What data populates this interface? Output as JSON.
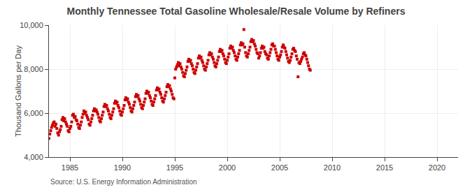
{
  "chart_data": {
    "type": "scatter",
    "title": "Monthly Tennessee Total Gasoline Wholesale/Resale Volume by Refiners",
    "ylabel": "Thousand Gallons per Day",
    "annotations": [
      "Source: U.S. Energy Information Administration"
    ],
    "color": "#cc0000",
    "marker": "square",
    "grid": true,
    "xlim": [
      1983,
      2022
    ],
    "ylim": [
      4000,
      10000
    ],
    "xticks": [
      1985,
      1990,
      1995,
      2000,
      2005,
      2010,
      2015,
      2020
    ],
    "yticks": [
      {
        "value": 4000,
        "label": "4,000"
      },
      {
        "value": 6000,
        "label": "6,000"
      },
      {
        "value": 8000,
        "label": "8,000"
      },
      {
        "value": 10000,
        "label": "10,000"
      }
    ],
    "x": [
      1983.0,
      1983.083,
      1983.167,
      1983.25,
      1983.333,
      1983.417,
      1983.5,
      1983.583,
      1983.667,
      1983.75,
      1983.833,
      1983.917,
      1984.0,
      1984.083,
      1984.167,
      1984.25,
      1984.333,
      1984.417,
      1984.5,
      1984.583,
      1984.667,
      1984.75,
      1984.833,
      1984.917,
      1985.0,
      1985.083,
      1985.167,
      1985.25,
      1985.333,
      1985.417,
      1985.5,
      1985.583,
      1985.667,
      1985.75,
      1985.833,
      1985.917,
      1986.0,
      1986.083,
      1986.167,
      1986.25,
      1986.333,
      1986.417,
      1986.5,
      1986.583,
      1986.667,
      1986.75,
      1986.833,
      1986.917,
      1987.0,
      1987.083,
      1987.167,
      1987.25,
      1987.333,
      1987.417,
      1987.5,
      1987.583,
      1987.667,
      1987.75,
      1987.833,
      1987.917,
      1988.0,
      1988.083,
      1988.167,
      1988.25,
      1988.333,
      1988.417,
      1988.5,
      1988.583,
      1988.667,
      1988.75,
      1988.833,
      1988.917,
      1989.0,
      1989.083,
      1989.167,
      1989.25,
      1989.333,
      1989.417,
      1989.5,
      1989.583,
      1989.667,
      1989.75,
      1989.833,
      1989.917,
      1990.0,
      1990.083,
      1990.167,
      1990.25,
      1990.333,
      1990.417,
      1990.5,
      1990.583,
      1990.667,
      1990.75,
      1990.833,
      1990.917,
      1991.0,
      1991.083,
      1991.167,
      1991.25,
      1991.333,
      1991.417,
      1991.5,
      1991.583,
      1991.667,
      1991.75,
      1991.833,
      1991.917,
      1992.0,
      1992.083,
      1992.167,
      1992.25,
      1992.333,
      1992.417,
      1992.5,
      1992.583,
      1992.667,
      1992.75,
      1992.833,
      1992.917,
      1993.0,
      1993.083,
      1993.167,
      1993.25,
      1993.333,
      1993.417,
      1993.5,
      1993.583,
      1993.667,
      1993.75,
      1993.833,
      1993.917,
      1994.0,
      1994.083,
      1994.167,
      1994.25,
      1994.333,
      1994.417,
      1994.5,
      1994.583,
      1994.667,
      1994.75,
      1994.833,
      1994.917,
      1995.0,
      1995.083,
      1995.167,
      1995.25,
      1995.333,
      1995.417,
      1995.5,
      1995.583,
      1995.667,
      1995.75,
      1995.833,
      1995.917,
      1996.0,
      1996.083,
      1996.167,
      1996.25,
      1996.333,
      1996.417,
      1996.5,
      1996.583,
      1996.667,
      1996.75,
      1996.833,
      1996.917,
      1997.0,
      1997.083,
      1997.167,
      1997.25,
      1997.333,
      1997.417,
      1997.5,
      1997.583,
      1997.667,
      1997.75,
      1997.833,
      1997.917,
      1998.0,
      1998.083,
      1998.167,
      1998.25,
      1998.333,
      1998.417,
      1998.5,
      1998.583,
      1998.667,
      1998.75,
      1998.833,
      1998.917,
      1999.0,
      1999.083,
      1999.167,
      1999.25,
      1999.333,
      1999.417,
      1999.5,
      1999.583,
      1999.667,
      1999.75,
      1999.833,
      1999.917,
      2000.0,
      2000.083,
      2000.167,
      2000.25,
      2000.333,
      2000.417,
      2000.5,
      2000.583,
      2000.667,
      2000.75,
      2000.833,
      2000.917,
      2001.0,
      2001.083,
      2001.167,
      2001.25,
      2001.333,
      2001.417,
      2001.5,
      2001.583,
      2001.667,
      2001.75,
      2001.833,
      2001.917,
      2002.0,
      2002.083,
      2002.167,
      2002.25,
      2002.333,
      2002.417,
      2002.5,
      2002.583,
      2002.667,
      2002.75,
      2002.833,
      2002.917,
      2003.0,
      2003.083,
      2003.167,
      2003.25,
      2003.333,
      2003.417,
      2003.5,
      2003.583,
      2003.667,
      2003.75,
      2003.833,
      2003.917,
      2004.0,
      2004.083,
      2004.167,
      2004.25,
      2004.333,
      2004.417,
      2004.5,
      2004.583,
      2004.667,
      2004.75,
      2004.833,
      2004.917,
      2005.0,
      2005.083,
      2005.167,
      2005.25,
      2005.333,
      2005.417,
      2005.5,
      2005.583,
      2005.667,
      2005.75,
      2005.833,
      2005.917,
      2006.0,
      2006.083,
      2006.167,
      2006.25,
      2006.333,
      2006.417,
      2006.5,
      2006.583,
      2006.667,
      2006.75,
      2006.833,
      2006.917,
      2007.0,
      2007.083,
      2007.167,
      2007.25,
      2007.333,
      2007.417,
      2007.5,
      2007.583,
      2007.667,
      2007.75,
      2007.833,
      2007.917
    ],
    "values": [
      4850,
      5050,
      5200,
      5350,
      5450,
      5550,
      5600,
      5400,
      5500,
      5300,
      5100,
      5000,
      5150,
      5250,
      5400,
      5700,
      5800,
      5650,
      5750,
      5600,
      5500,
      5400,
      5200,
      5150,
      5300,
      5400,
      5600,
      5900,
      5950,
      5800,
      5850,
      5700,
      5650,
      5500,
      5350,
      5300,
      5450,
      5600,
      5800,
      5950,
      6100,
      6000,
      6050,
      5900,
      5800,
      5700,
      5500,
      5450,
      5600,
      5750,
      5900,
      6100,
      6200,
      6100,
      6150,
      6050,
      5950,
      5800,
      5650,
      5600,
      5750,
      5900,
      6050,
      6300,
      6400,
      6300,
      6350,
      6200,
      6100,
      5950,
      5800,
      5750,
      5900,
      6050,
      6200,
      6450,
      6550,
      6450,
      6500,
      6350,
      6250,
      6100,
      5950,
      5900,
      6050,
      6200,
      6350,
      6600,
      6700,
      6600,
      6650,
      6500,
      6400,
      6250,
      6100,
      6050,
      6200,
      6350,
      6500,
      6750,
      6850,
      6750,
      6800,
      6650,
      6550,
      6400,
      6250,
      6200,
      6350,
      6500,
      6650,
      6900,
      7000,
      6900,
      6950,
      6800,
      6700,
      6550,
      6400,
      6350,
      6500,
      6650,
      6800,
      7050,
      7150,
      7050,
      7100,
      6950,
      6850,
      6700,
      6550,
      6500,
      6650,
      6800,
      6950,
      7200,
      7300,
      7200,
      7250,
      7100,
      7000,
      6850,
      6700,
      6650,
      7600,
      8000,
      8100,
      8200,
      8300,
      8150,
      8250,
      8100,
      8000,
      7850,
      7700,
      7650,
      7800,
      7950,
      8100,
      8350,
      8450,
      8350,
      8400,
      8250,
      8150,
      8000,
      7850,
      7800,
      7950,
      8100,
      8250,
      8500,
      8600,
      8500,
      8550,
      8400,
      8300,
      8150,
      8000,
      7950,
      8100,
      8250,
      8400,
      8650,
      8750,
      8650,
      8700,
      8550,
      8450,
      8300,
      8150,
      8100,
      8250,
      8400,
      8550,
      8800,
      8900,
      8800,
      8850,
      8700,
      8600,
      8450,
      8300,
      8250,
      8400,
      8550,
      8700,
      8950,
      9050,
      8950,
      9000,
      8850,
      8750,
      8600,
      8450,
      8400,
      8550,
      8700,
      8850,
      9100,
      9200,
      9100,
      9150,
      9800,
      9000,
      8750,
      8600,
      8550,
      8700,
      8850,
      9000,
      9250,
      9350,
      9250,
      9300,
      9150,
      9050,
      8900,
      8750,
      8700,
      8500,
      8600,
      8750,
      8950,
      9050,
      8950,
      9000,
      8800,
      8700,
      8650,
      8500,
      8450,
      8600,
      8750,
      8900,
      9100,
      9150,
      9050,
      9050,
      8900,
      8750,
      8600,
      8450,
      8400,
      8550,
      8650,
      8800,
      9000,
      9100,
      9000,
      8950,
      8800,
      8650,
      8500,
      8350,
      8300,
      8400,
      8550,
      8700,
      8900,
      8950,
      8850,
      8800,
      8600,
      8450,
      7650,
      8300,
      8250,
      8350,
      8450,
      8550,
      8700,
      8750,
      8650,
      8600,
      8450,
      8300,
      8150,
      8000,
      7950
    ]
  }
}
